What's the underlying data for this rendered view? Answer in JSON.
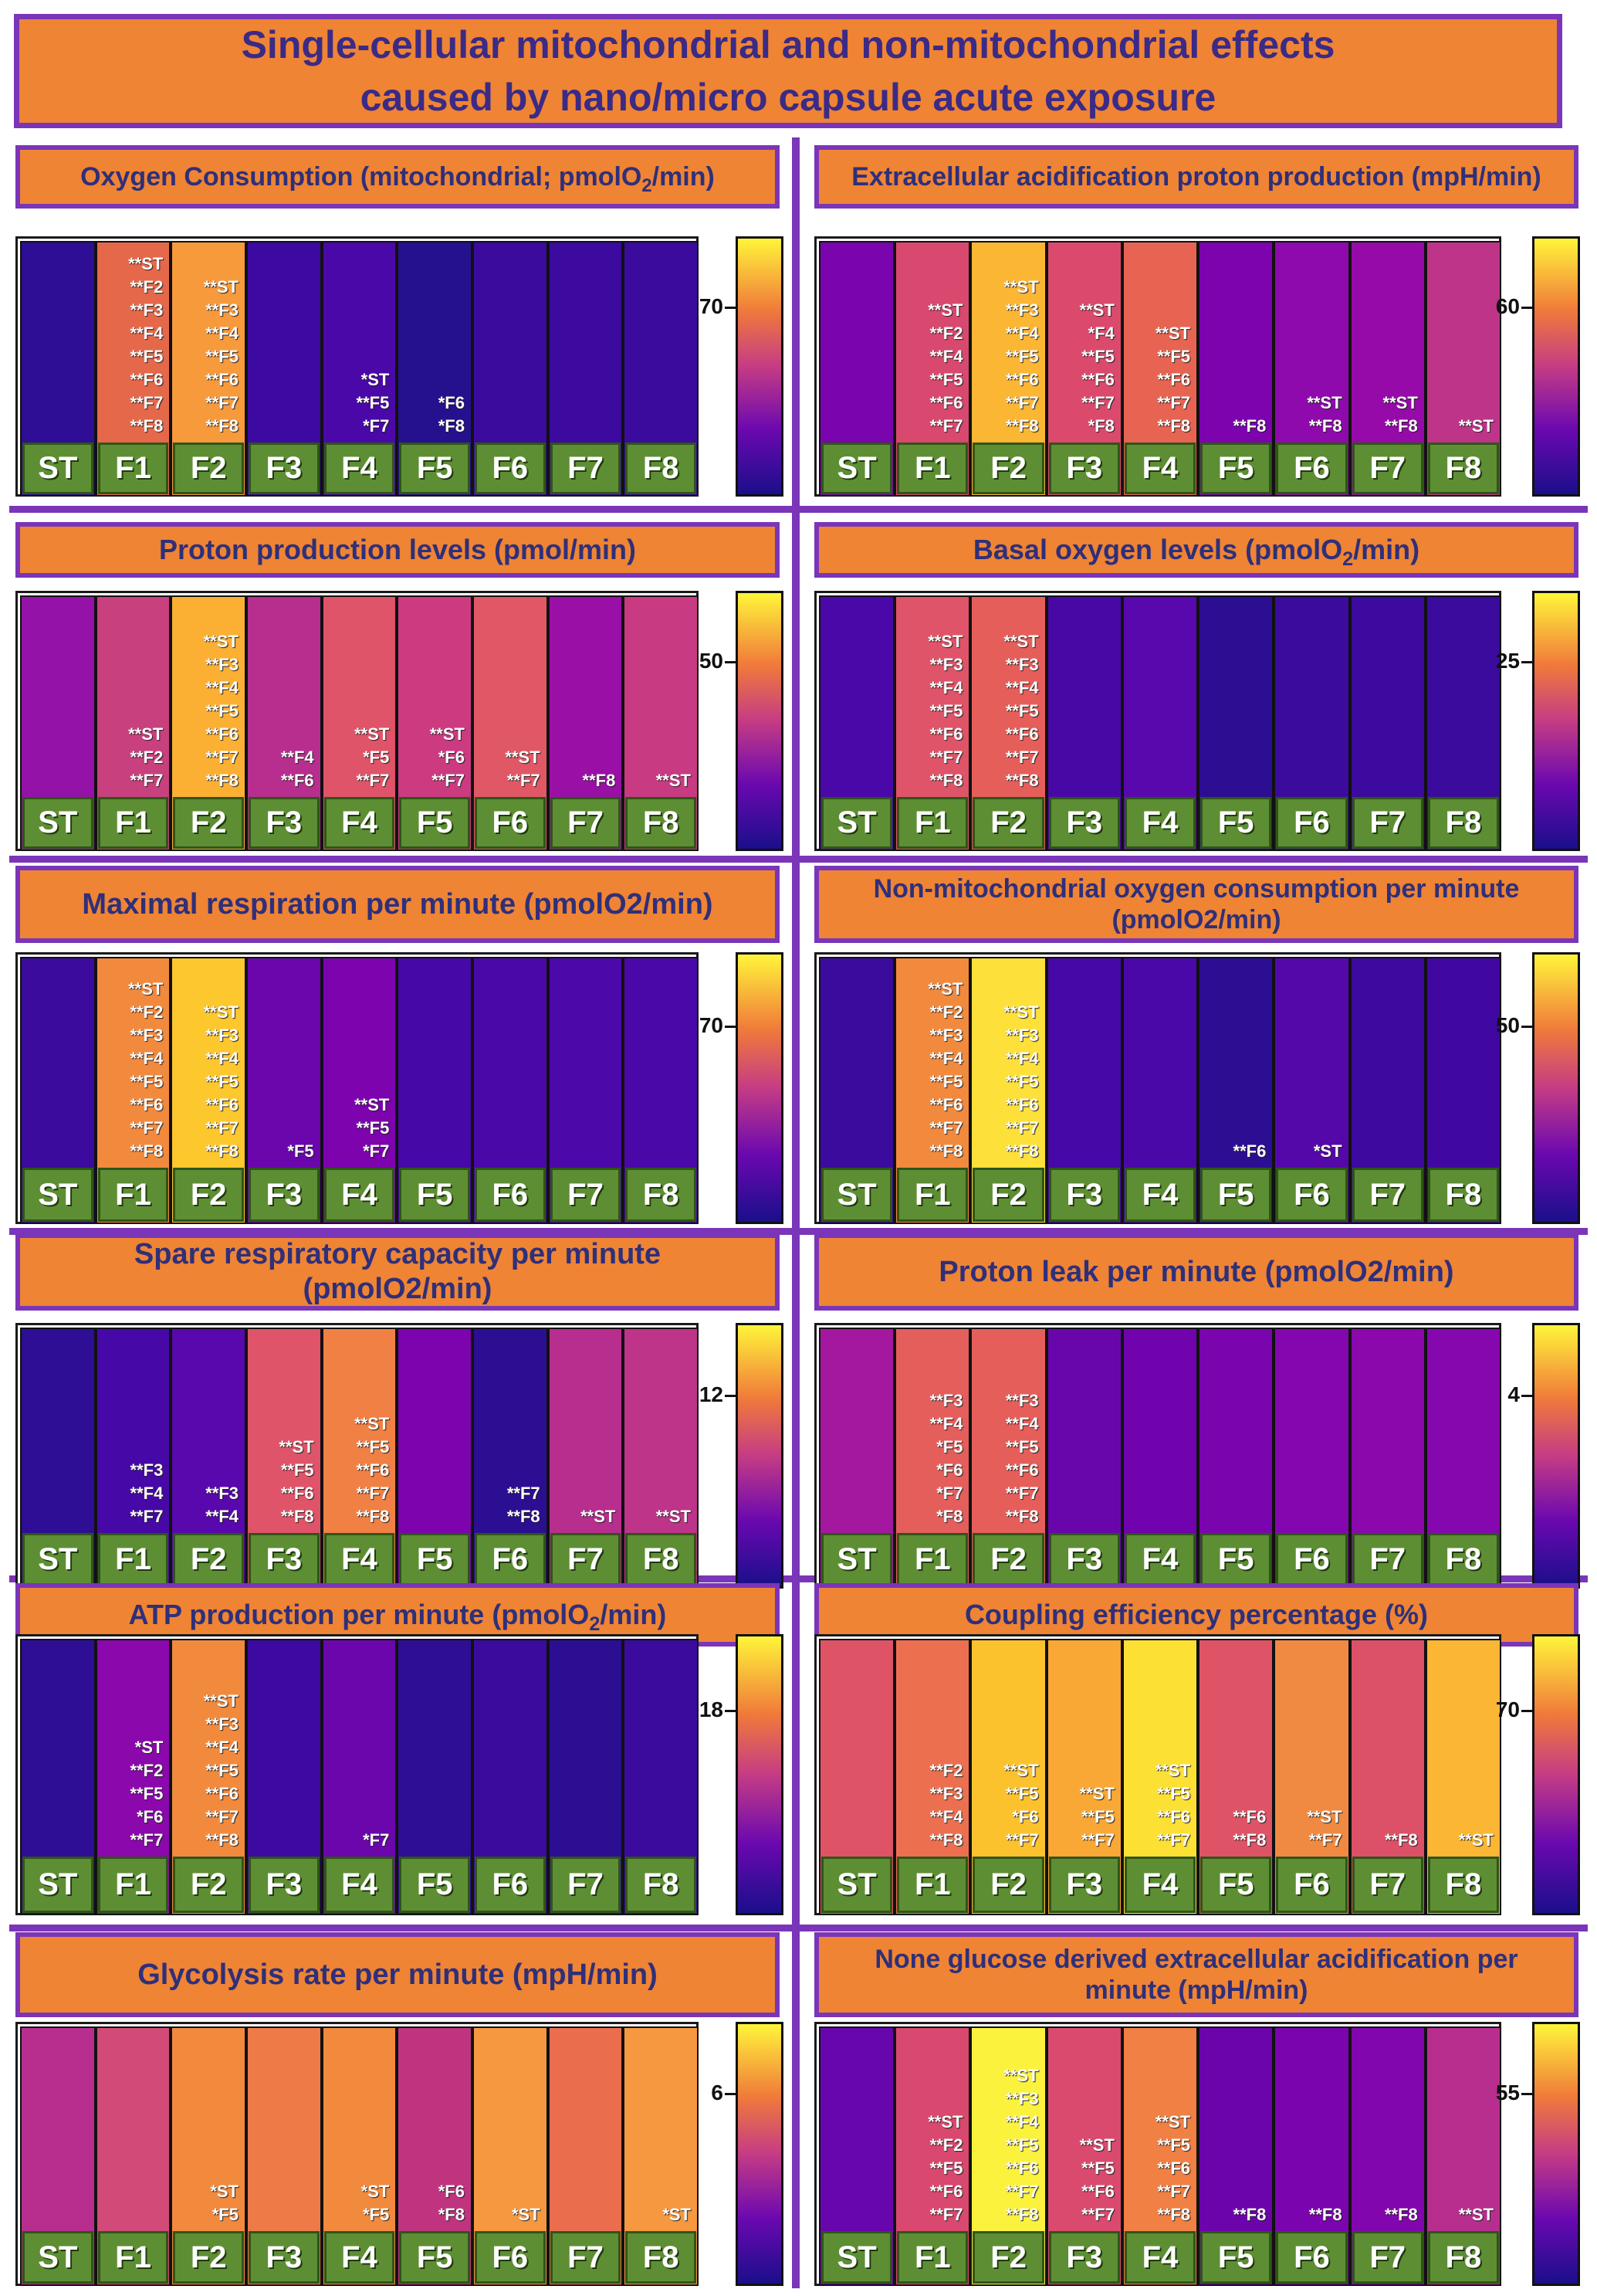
{
  "title_line1": "Single-cellular mitochondrial and non-mitochondrial effects",
  "title_line2": "caused by nano/micro capsule acute exposure",
  "colors": {
    "frame_purple": "#7a35b8",
    "title_orange": "#ee8434",
    "label_green": "#5e8e34",
    "scale": [
      "#1a0f8a",
      "#6a08b0",
      "#c53c84",
      "#f07a3a",
      "#fff53a"
    ]
  },
  "chart_data": [
    {
      "type": "heatmap",
      "title": "Oxygen Consumption (mitochondrial; pmolO₂/min)",
      "categories": [
        "ST",
        "F1",
        "F2",
        "F3",
        "F4",
        "F5",
        "F6",
        "F7",
        "F8"
      ],
      "colorbar_label": "70",
      "colors": [
        "#2d0e94",
        "#e6684a",
        "#f79a3c",
        "#3c0aa0",
        "#4a08a8",
        "#25108e",
        "#3a0b9c",
        "#3c0a9e",
        "#3a0b9c"
      ],
      "annotations": [
        [],
        [
          "**ST",
          "**F2",
          "**F3",
          "**F4",
          "**F5",
          "**F6",
          "**F7",
          "**F8"
        ],
        [
          "**ST",
          "**F3",
          "**F4",
          "**F5",
          "**F6",
          "**F7",
          "**F8"
        ],
        [],
        [
          "*ST",
          "**F5",
          "*F7"
        ],
        [
          "*F6",
          "*F8"
        ],
        [],
        [],
        []
      ]
    },
    {
      "type": "heatmap",
      "title": "Extracellular acidification proton production (mpH/min)",
      "categories": [
        "ST",
        "F1",
        "F2",
        "F3",
        "F4",
        "F5",
        "F6",
        "F7",
        "F8"
      ],
      "colorbar_label": "60",
      "colors": [
        "#7a04ae",
        "#d9486e",
        "#fbb633",
        "#db4a6c",
        "#e86452",
        "#7c03ae",
        "#8e0aac",
        "#950aa9",
        "#bd3489"
      ],
      "annotations": [
        [],
        [
          "**ST",
          "**F2",
          "**F4",
          "**F5",
          "**F6",
          "**F7"
        ],
        [
          "**ST",
          "**F3",
          "**F4",
          "**F5",
          "**F6",
          "**F7",
          "**F8"
        ],
        [
          "**ST",
          "*F4",
          "**F5",
          "**F6",
          "**F7",
          "*F8"
        ],
        [
          "**ST",
          "**F5",
          "**F6",
          "**F7",
          "**F8"
        ],
        [
          "**F8"
        ],
        [
          "**ST",
          "**F8"
        ],
        [
          "**ST",
          "**F8"
        ],
        [
          "**ST"
        ]
      ]
    },
    {
      "type": "heatmap",
      "title": "Proton production levels (pmol/min)",
      "categories": [
        "ST",
        "F1",
        "F2",
        "F3",
        "F4",
        "F5",
        "F6",
        "F7",
        "F8"
      ],
      "colorbar_label": "50",
      "colors": [
        "#9512a8",
        "#c8407e",
        "#fbb033",
        "#b72e8e",
        "#df5468",
        "#cc3a80",
        "#e05866",
        "#9a10a6",
        "#c83a82"
      ],
      "annotations": [
        [],
        [
          "**ST",
          "**F2",
          "**F7"
        ],
        [
          "**ST",
          "**F3",
          "**F4",
          "**F5",
          "**F6",
          "**F7",
          "**F8"
        ],
        [
          "**F4",
          "**F6"
        ],
        [
          "**ST",
          "*F5",
          "**F7"
        ],
        [
          "**ST",
          "*F6",
          "**F7"
        ],
        [
          "**ST",
          "**F7"
        ],
        [
          "**F8"
        ],
        [
          "**ST"
        ]
      ]
    },
    {
      "type": "heatmap",
      "title": "Basal oxygen levels (pmolO₂/min)",
      "categories": [
        "ST",
        "F1",
        "F2",
        "F3",
        "F4",
        "F5",
        "F6",
        "F7",
        "F8"
      ],
      "colorbar_label": "25",
      "colors": [
        "#4a08a8",
        "#df5468",
        "#e65e5a",
        "#4808a6",
        "#5808ac",
        "#2c0e92",
        "#3a0b9c",
        "#3c0a9e",
        "#3a0b9c"
      ],
      "annotations": [
        [],
        [
          "**ST",
          "**F3",
          "**F4",
          "**F5",
          "**F6",
          "**F7",
          "**F8"
        ],
        [
          "**ST",
          "**F3",
          "**F4",
          "**F5",
          "**F6",
          "**F7",
          "**F8"
        ],
        [],
        [],
        [],
        [],
        [],
        []
      ]
    },
    {
      "type": "heatmap",
      "title": "Maximal respiration per minute (pmolO2/min)",
      "categories": [
        "ST",
        "F1",
        "F2",
        "F3",
        "F4",
        "F5",
        "F6",
        "F7",
        "F8"
      ],
      "colorbar_label": "70",
      "colors": [
        "#3a0b9c",
        "#f28a3e",
        "#fdc72e",
        "#6a06ac",
        "#7c03ae",
        "#4608a6",
        "#4a08a8",
        "#4c08a8",
        "#4a08a8"
      ],
      "annotations": [
        [],
        [
          "**ST",
          "**F2",
          "**F3",
          "**F4",
          "**F5",
          "**F6",
          "**F7",
          "**F8"
        ],
        [
          "**ST",
          "**F3",
          "**F4",
          "**F5",
          "**F6",
          "**F7",
          "**F8"
        ],
        [
          "*F5"
        ],
        [
          "**ST",
          "**F5",
          "*F7"
        ],
        [],
        [],
        [],
        []
      ]
    },
    {
      "type": "heatmap",
      "title": "Non-mitochondrial oxygen consumption per minute (pmolO2/min)",
      "categories": [
        "ST",
        "F1",
        "F2",
        "F3",
        "F4",
        "F5",
        "F6",
        "F7",
        "F8"
      ],
      "colorbar_label": "50",
      "colors": [
        "#3a0b9c",
        "#f28a3e",
        "#fde03a",
        "#4608a6",
        "#4a08a8",
        "#2c0e92",
        "#5408aa",
        "#3c0a9e",
        "#4008a0"
      ],
      "annotations": [
        [],
        [
          "**ST",
          "**F2",
          "**F3",
          "**F4",
          "**F5",
          "**F6",
          "**F7",
          "**F8"
        ],
        [
          "**ST",
          "**F3",
          "**F4",
          "**F5",
          "**F6",
          "**F7",
          "**F8"
        ],
        [],
        [],
        [
          "**F6"
        ],
        [
          "*ST"
        ],
        [],
        []
      ]
    },
    {
      "type": "heatmap",
      "title": "Spare respiratory capacity per minute (pmolO2/min)",
      "categories": [
        "ST",
        "F1",
        "F2",
        "F3",
        "F4",
        "F5",
        "F6",
        "F7",
        "F8"
      ],
      "colorbar_label": "12",
      "colors": [
        "#2d0e94",
        "#4608a6",
        "#5808ac",
        "#df5468",
        "#f08044",
        "#7c03ae",
        "#2c0e92",
        "#b72e8e",
        "#bd3489"
      ],
      "annotations": [
        [],
        [
          "**F3",
          "**F4",
          "**F7"
        ],
        [
          "**F3",
          "**F4"
        ],
        [
          "**ST",
          "**F5",
          "**F6",
          "**F8"
        ],
        [
          "**ST",
          "**F5",
          "**F6",
          "**F7",
          "**F8"
        ],
        [],
        [
          "**F7",
          "**F8"
        ],
        [
          "**ST"
        ],
        [
          "**ST"
        ]
      ]
    },
    {
      "type": "heatmap",
      "title": "Proton leak per minute (pmolO2/min)",
      "categories": [
        "ST",
        "F1",
        "F2",
        "F3",
        "F4",
        "F5",
        "F6",
        "F7",
        "F8"
      ],
      "colorbar_label": "4",
      "colors": [
        "#a3189e",
        "#e45e5c",
        "#e65e5a",
        "#6806ac",
        "#7003ae",
        "#7a04ae",
        "#8406ae",
        "#8a08ac",
        "#8408ae"
      ],
      "annotations": [
        [],
        [
          "**F3",
          "**F4",
          "*F5",
          "*F6",
          "*F7",
          "*F8"
        ],
        [
          "**F3",
          "**F4",
          "**F5",
          "**F6",
          "**F7",
          "**F8"
        ],
        [],
        [],
        [],
        [],
        [],
        []
      ]
    },
    {
      "type": "heatmap",
      "title": "ATP production per minute (pmolO₂/min)",
      "categories": [
        "ST",
        "F1",
        "F2",
        "F3",
        "F4",
        "F5",
        "F6",
        "F7",
        "F8"
      ],
      "colorbar_label": "18",
      "colors": [
        "#2d0e94",
        "#8a08ac",
        "#f28a3e",
        "#3c0aa0",
        "#6a06ac",
        "#2e0e94",
        "#3a0b9c",
        "#2c0e92",
        "#3a0b9c"
      ],
      "annotations": [
        [],
        [
          "*ST",
          "**F2",
          "**F5",
          "*F6",
          "**F7"
        ],
        [
          "**ST",
          "**F3",
          "**F4",
          "**F5",
          "**F6",
          "**F7",
          "**F8"
        ],
        [],
        [
          "*F7"
        ],
        [],
        [],
        [],
        []
      ]
    },
    {
      "type": "heatmap",
      "title": "Coupling efficiency percentage (%)",
      "categories": [
        "ST",
        "F1",
        "F2",
        "F3",
        "F4",
        "F5",
        "F6",
        "F7",
        "F8"
      ],
      "colorbar_label": "70",
      "colors": [
        "#de5466",
        "#ec7050",
        "#fcc22e",
        "#f9a835",
        "#fde034",
        "#de5466",
        "#f08a42",
        "#dc5068",
        "#fbb633"
      ],
      "annotations": [
        [],
        [
          "**F2",
          "**F3",
          "**F4",
          "**F8"
        ],
        [
          "**ST",
          "**F5",
          "*F6",
          "**F7"
        ],
        [
          "**ST",
          "**F5",
          "**F7"
        ],
        [
          "**ST",
          "**F5",
          "**F6",
          "**F7"
        ],
        [
          "**F6",
          "**F8"
        ],
        [
          "**ST",
          "**F7"
        ],
        [
          "**F8"
        ],
        [
          "**ST"
        ]
      ]
    },
    {
      "type": "heatmap",
      "title": "Glycolysis rate per minute (mpH/min)",
      "categories": [
        "ST",
        "F1",
        "F2",
        "F3",
        "F4",
        "F5",
        "F6",
        "F7",
        "F8"
      ],
      "colorbar_label": "6",
      "colors": [
        "#b72e8e",
        "#d24a78",
        "#f28a3e",
        "#ee7a48",
        "#f28a3e",
        "#c0347f",
        "#f59840",
        "#ea6e4e",
        "#f59840"
      ],
      "annotations": [
        [],
        [],
        [
          "*ST",
          "*F5"
        ],
        [],
        [
          "*ST",
          "*F5"
        ],
        [
          "*F6",
          "*F8"
        ],
        [
          "*ST"
        ],
        [],
        [
          "*ST"
        ]
      ]
    },
    {
      "type": "heatmap",
      "title": "None glucose derived extracellular acidification per minute (mpH/min)",
      "categories": [
        "ST",
        "F1",
        "F2",
        "F3",
        "F4",
        "F5",
        "F6",
        "F7",
        "F8"
      ],
      "colorbar_label": "55",
      "colors": [
        "#6606ac",
        "#d9486e",
        "#fbf23e",
        "#da4a6e",
        "#f08044",
        "#6c04ac",
        "#7a04ae",
        "#8206ae",
        "#b72e8e"
      ],
      "annotations": [
        [],
        [
          "**ST",
          "**F2",
          "**F5",
          "**F6",
          "**F7"
        ],
        [
          "**ST",
          "**F3",
          "**F4",
          "**F5",
          "**F6",
          "**F7",
          "**F8"
        ],
        [
          "**ST",
          "**F5",
          "**F6",
          "**F7"
        ],
        [
          "**ST",
          "**F5",
          "**F6",
          "**F7",
          "**F8"
        ],
        [
          "**F8"
        ],
        [
          "**F8"
        ],
        [
          "**F8"
        ],
        [
          "**ST"
        ]
      ]
    }
  ]
}
